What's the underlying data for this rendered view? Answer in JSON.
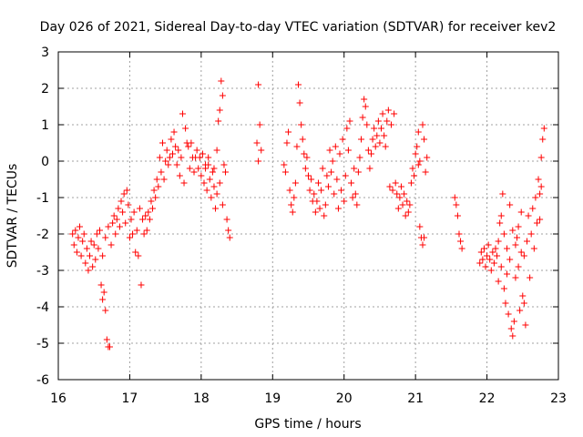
{
  "chart_data": {
    "type": "scatter",
    "title": "Day 026 of 2021, Sidereal Day-to-day VTEC variation (SDTVAR) for receiver kev2",
    "xlabel": "GPS time / hours",
    "ylabel": "SDTVAR / TECUs",
    "xlim": [
      16,
      23
    ],
    "ylim": [
      -6,
      3
    ],
    "xticks": [
      "16",
      "17",
      "18",
      "19",
      "20",
      "21",
      "22",
      "23"
    ],
    "yticks": [
      "-6",
      "-5",
      "-4",
      "-3",
      "-2",
      "-1",
      "0",
      "1",
      "2",
      "3"
    ],
    "grid": true,
    "marker": "+",
    "series": [
      {
        "name": "SDTVAR",
        "color": "#ff0000",
        "points": [
          [
            16.2,
            -2.0
          ],
          [
            16.22,
            -2.3
          ],
          [
            16.24,
            -1.9
          ],
          [
            16.26,
            -2.5
          ],
          [
            16.28,
            -2.1
          ],
          [
            16.3,
            -1.8
          ],
          [
            16.32,
            -2.6
          ],
          [
            16.34,
            -2.2
          ],
          [
            16.36,
            -2.0
          ],
          [
            16.38,
            -2.8
          ],
          [
            16.4,
            -2.4
          ],
          [
            16.42,
            -3.0
          ],
          [
            16.44,
            -2.6
          ],
          [
            16.46,
            -2.2
          ],
          [
            16.48,
            -2.9
          ],
          [
            16.5,
            -2.3
          ],
          [
            16.52,
            -2.7
          ],
          [
            16.54,
            -2.0
          ],
          [
            16.56,
            -2.4
          ],
          [
            16.58,
            -1.9
          ],
          [
            16.6,
            -3.4
          ],
          [
            16.62,
            -3.8
          ],
          [
            16.64,
            -3.6
          ],
          [
            16.66,
            -4.1
          ],
          [
            16.68,
            -4.9
          ],
          [
            16.7,
            -5.1
          ],
          [
            16.72,
            -5.1
          ],
          [
            16.62,
            -2.6
          ],
          [
            16.66,
            -2.1
          ],
          [
            16.7,
            -1.8
          ],
          [
            16.74,
            -2.3
          ],
          [
            16.76,
            -1.7
          ],
          [
            16.78,
            -1.5
          ],
          [
            16.8,
            -2.0
          ],
          [
            16.82,
            -1.6
          ],
          [
            16.84,
            -1.3
          ],
          [
            16.86,
            -1.8
          ],
          [
            16.88,
            -1.1
          ],
          [
            16.9,
            -1.4
          ],
          [
            16.92,
            -0.9
          ],
          [
            16.94,
            -1.7
          ],
          [
            16.96,
            -0.8
          ],
          [
            16.98,
            -1.2
          ],
          [
            17.0,
            -2.1
          ],
          [
            17.02,
            -1.6
          ],
          [
            17.04,
            -2.0
          ],
          [
            17.06,
            -1.4
          ],
          [
            17.08,
            -2.5
          ],
          [
            17.1,
            -1.9
          ],
          [
            17.12,
            -2.6
          ],
          [
            17.14,
            -1.3
          ],
          [
            17.16,
            -3.4
          ],
          [
            17.18,
            -1.6
          ],
          [
            17.2,
            -2.0
          ],
          [
            17.22,
            -1.5
          ],
          [
            17.24,
            -1.9
          ],
          [
            17.26,
            -1.4
          ],
          [
            17.28,
            -1.6
          ],
          [
            17.3,
            -1.1
          ],
          [
            17.32,
            -1.3
          ],
          [
            17.34,
            -0.8
          ],
          [
            17.36,
            -1.0
          ],
          [
            17.38,
            -0.5
          ],
          [
            17.4,
            -0.7
          ],
          [
            17.42,
            0.1
          ],
          [
            17.44,
            -0.3
          ],
          [
            17.46,
            0.5
          ],
          [
            17.48,
            -0.5
          ],
          [
            17.5,
            0.0
          ],
          [
            17.52,
            0.3
          ],
          [
            17.54,
            -0.1
          ],
          [
            17.56,
            0.1
          ],
          [
            17.58,
            0.6
          ],
          [
            17.6,
            0.2
          ],
          [
            17.62,
            0.8
          ],
          [
            17.64,
            0.4
          ],
          [
            17.66,
            -0.1
          ],
          [
            17.68,
            0.3
          ],
          [
            17.7,
            -0.4
          ],
          [
            17.72,
            0.1
          ],
          [
            17.74,
            1.3
          ],
          [
            17.76,
            -0.6
          ],
          [
            17.78,
            0.9
          ],
          [
            17.8,
            0.5
          ],
          [
            17.82,
            0.4
          ],
          [
            17.84,
            -0.2
          ],
          [
            17.86,
            0.5
          ],
          [
            17.88,
            0.1
          ],
          [
            17.9,
            -0.3
          ],
          [
            17.92,
            0.1
          ],
          [
            17.94,
            0.3
          ],
          [
            17.96,
            -0.2
          ],
          [
            17.98,
            0.1
          ],
          [
            18.0,
            -0.4
          ],
          [
            18.02,
            0.2
          ],
          [
            18.04,
            -0.6
          ],
          [
            18.06,
            -0.2
          ],
          [
            18.08,
            -0.8
          ],
          [
            18.1,
            -0.1
          ],
          [
            18.12,
            -0.5
          ],
          [
            18.14,
            -1.0
          ],
          [
            18.16,
            -0.3
          ],
          [
            18.18,
            -0.7
          ],
          [
            18.2,
            -1.3
          ],
          [
            18.22,
            0.3
          ],
          [
            18.24,
            1.1
          ],
          [
            18.26,
            1.4
          ],
          [
            18.28,
            2.2
          ],
          [
            18.3,
            1.8
          ],
          [
            18.32,
            -0.1
          ],
          [
            18.34,
            -0.3
          ],
          [
            18.36,
            -1.6
          ],
          [
            18.38,
            -1.9
          ],
          [
            18.4,
            -2.1
          ],
          [
            18.3,
            -1.2
          ],
          [
            18.26,
            -0.6
          ],
          [
            18.22,
            -0.9
          ],
          [
            18.18,
            -0.2
          ],
          [
            18.1,
            0.1
          ],
          [
            18.06,
            -0.1
          ],
          [
            18.8,
            2.1
          ],
          [
            18.82,
            1.0
          ],
          [
            18.78,
            0.5
          ],
          [
            18.8,
            0.0
          ],
          [
            18.84,
            0.3
          ],
          [
            19.16,
            -0.1
          ],
          [
            19.18,
            -0.3
          ],
          [
            19.2,
            0.5
          ],
          [
            19.22,
            0.8
          ],
          [
            19.24,
            -0.8
          ],
          [
            19.26,
            -1.2
          ],
          [
            19.28,
            -1.4
          ],
          [
            19.3,
            -1.0
          ],
          [
            19.32,
            -0.6
          ],
          [
            19.34,
            0.4
          ],
          [
            19.36,
            2.1
          ],
          [
            19.38,
            1.6
          ],
          [
            19.4,
            1.0
          ],
          [
            19.42,
            0.6
          ],
          [
            19.44,
            0.2
          ],
          [
            19.46,
            -0.2
          ],
          [
            19.48,
            0.1
          ],
          [
            19.5,
            -0.4
          ],
          [
            19.52,
            -0.8
          ],
          [
            19.54,
            -0.5
          ],
          [
            19.56,
            -1.1
          ],
          [
            19.58,
            -0.9
          ],
          [
            19.6,
            -1.4
          ],
          [
            19.62,
            -1.1
          ],
          [
            19.64,
            -0.6
          ],
          [
            19.66,
            -1.3
          ],
          [
            19.68,
            -0.8
          ],
          [
            19.7,
            -0.2
          ],
          [
            19.72,
            -1.5
          ],
          [
            19.74,
            -1.2
          ],
          [
            19.76,
            -0.4
          ],
          [
            19.78,
            -0.7
          ],
          [
            19.8,
            0.3
          ],
          [
            19.82,
            -0.3
          ],
          [
            19.84,
            0.0
          ],
          [
            19.86,
            -0.9
          ],
          [
            19.88,
            0.4
          ],
          [
            19.9,
            -0.5
          ],
          [
            19.92,
            -1.3
          ],
          [
            19.94,
            0.2
          ],
          [
            19.96,
            -0.8
          ],
          [
            19.98,
            0.6
          ],
          [
            20.0,
            -1.1
          ],
          [
            20.02,
            -0.4
          ],
          [
            20.04,
            0.9
          ],
          [
            20.06,
            0.3
          ],
          [
            20.08,
            1.1
          ],
          [
            20.1,
            -0.6
          ],
          [
            20.12,
            -1.0
          ],
          [
            20.14,
            -0.2
          ],
          [
            20.16,
            -0.9
          ],
          [
            20.18,
            -1.2
          ],
          [
            20.2,
            -0.3
          ],
          [
            20.22,
            0.1
          ],
          [
            20.24,
            0.6
          ],
          [
            20.26,
            1.2
          ],
          [
            20.28,
            1.7
          ],
          [
            20.3,
            1.5
          ],
          [
            20.32,
            1.0
          ],
          [
            20.34,
            0.3
          ],
          [
            20.36,
            -0.2
          ],
          [
            20.38,
            0.2
          ],
          [
            20.4,
            0.6
          ],
          [
            20.42,
            0.9
          ],
          [
            20.44,
            0.4
          ],
          [
            20.46,
            0.7
          ],
          [
            20.48,
            1.1
          ],
          [
            20.5,
            0.5
          ],
          [
            20.52,
            0.9
          ],
          [
            20.54,
            1.3
          ],
          [
            20.56,
            0.7
          ],
          [
            20.58,
            0.4
          ],
          [
            20.6,
            1.1
          ],
          [
            20.62,
            1.4
          ],
          [
            20.64,
            -0.7
          ],
          [
            20.66,
            1.0
          ],
          [
            20.68,
            -0.8
          ],
          [
            20.7,
            1.3
          ],
          [
            20.72,
            -0.6
          ],
          [
            20.74,
            -0.9
          ],
          [
            20.76,
            -1.3
          ],
          [
            20.78,
            -1.0
          ],
          [
            20.8,
            -0.7
          ],
          [
            20.82,
            -1.2
          ],
          [
            20.84,
            -0.9
          ],
          [
            20.86,
            -1.5
          ],
          [
            20.88,
            -1.1
          ],
          [
            20.9,
            -1.4
          ],
          [
            20.92,
            -1.2
          ],
          [
            20.94,
            -0.6
          ],
          [
            20.96,
            -0.2
          ],
          [
            20.98,
            -0.4
          ],
          [
            21.0,
            0.2
          ],
          [
            21.02,
            0.4
          ],
          [
            21.04,
            -0.1
          ],
          [
            21.06,
            -1.8
          ],
          [
            21.08,
            -2.1
          ],
          [
            21.1,
            -2.3
          ],
          [
            21.12,
            -2.1
          ],
          [
            21.04,
            0.8
          ],
          [
            21.06,
            0.0
          ],
          [
            21.1,
            1.0
          ],
          [
            21.12,
            0.6
          ],
          [
            21.14,
            -0.3
          ],
          [
            21.16,
            0.1
          ],
          [
            21.55,
            -1.0
          ],
          [
            21.57,
            -1.2
          ],
          [
            21.59,
            -1.5
          ],
          [
            21.61,
            -2.0
          ],
          [
            21.63,
            -2.2
          ],
          [
            21.65,
            -2.4
          ],
          [
            21.9,
            -2.8
          ],
          [
            21.92,
            -2.5
          ],
          [
            21.94,
            -2.7
          ],
          [
            21.96,
            -2.4
          ],
          [
            21.98,
            -2.9
          ],
          [
            22.0,
            -2.6
          ],
          [
            22.02,
            -2.3
          ],
          [
            22.04,
            -2.7
          ],
          [
            22.06,
            -3.0
          ],
          [
            22.08,
            -2.5
          ],
          [
            22.1,
            -2.8
          ],
          [
            22.12,
            -2.4
          ],
          [
            22.14,
            -2.6
          ],
          [
            22.16,
            -2.2
          ],
          [
            22.18,
            -1.7
          ],
          [
            22.2,
            -1.5
          ],
          [
            22.22,
            -0.9
          ],
          [
            22.24,
            -3.5
          ],
          [
            22.26,
            -3.9
          ],
          [
            22.28,
            -2.4
          ],
          [
            22.3,
            -4.2
          ],
          [
            22.32,
            -1.2
          ],
          [
            22.34,
            -4.6
          ],
          [
            22.36,
            -4.8
          ],
          [
            22.38,
            -4.4
          ],
          [
            22.4,
            -3.2
          ],
          [
            22.42,
            -2.1
          ],
          [
            22.44,
            -1.8
          ],
          [
            22.46,
            -4.1
          ],
          [
            22.48,
            -2.5
          ],
          [
            22.5,
            -3.7
          ],
          [
            22.52,
            -3.9
          ],
          [
            22.54,
            -4.5
          ],
          [
            22.56,
            -2.2
          ],
          [
            22.58,
            -1.5
          ],
          [
            22.6,
            -3.2
          ],
          [
            22.62,
            -2.0
          ],
          [
            22.64,
            -1.3
          ],
          [
            22.66,
            -2.4
          ],
          [
            22.68,
            -1.0
          ],
          [
            22.7,
            -1.7
          ],
          [
            22.72,
            -0.5
          ],
          [
            22.74,
            -0.9
          ],
          [
            22.76,
            0.1
          ],
          [
            22.78,
            0.6
          ],
          [
            22.8,
            0.9
          ],
          [
            22.76,
            -0.7
          ],
          [
            22.74,
            -1.6
          ],
          [
            22.52,
            -2.6
          ],
          [
            22.48,
            -1.4
          ],
          [
            22.44,
            -2.9
          ],
          [
            22.4,
            -2.3
          ],
          [
            22.36,
            -1.9
          ],
          [
            22.32,
            -2.7
          ],
          [
            22.28,
            -3.1
          ],
          [
            22.24,
            -2.0
          ],
          [
            22.2,
            -2.9
          ],
          [
            22.16,
            -3.3
          ]
        ]
      }
    ]
  }
}
